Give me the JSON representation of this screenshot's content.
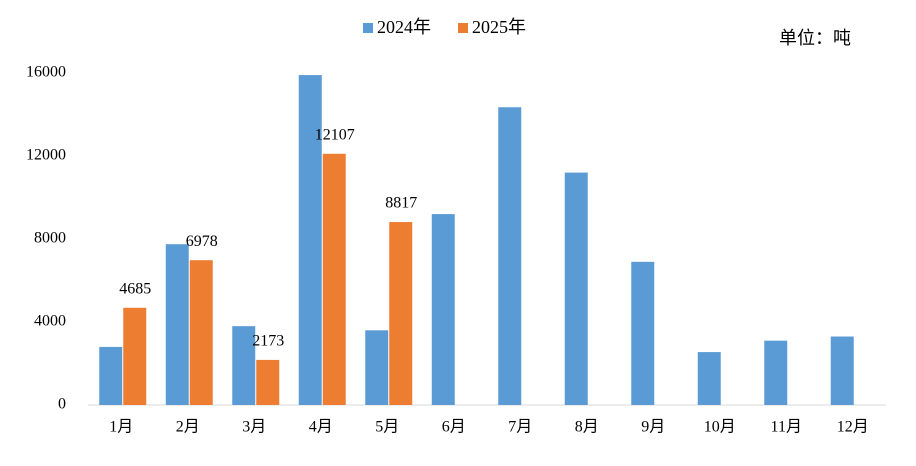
{
  "chart_data": {
    "type": "bar",
    "unit_note": "单位：吨",
    "categories": [
      "1月",
      "2月",
      "3月",
      "4月",
      "5月",
      "6月",
      "7月",
      "8月",
      "9月",
      "10月",
      "11月",
      "12月"
    ],
    "series": [
      {
        "name": "2024年",
        "color": "#5b9bd5",
        "values": [
          2800,
          7750,
          3800,
          15900,
          3600,
          9200,
          14350,
          11200,
          6900,
          2550,
          3100,
          3300
        ]
      },
      {
        "name": "2025年",
        "color": "#ed7d31",
        "values": [
          4685,
          6978,
          2173,
          12107,
          8817,
          null,
          null,
          null,
          null,
          null,
          null,
          null
        ],
        "show_labels": true
      }
    ],
    "ylim": [
      0,
      16000
    ],
    "yticks": [
      0,
      4000,
      8000,
      12000,
      16000
    ],
    "grid": false,
    "legend": "top"
  }
}
